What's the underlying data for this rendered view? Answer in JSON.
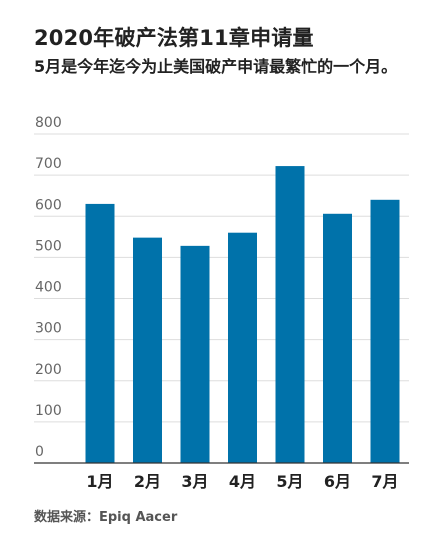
{
  "title": "2020年破产法第11章申请量",
  "subtitle": "5月是今年迄今为止美国破产申请最繁忙的一个月。",
  "source": "数据来源：Epiq Aacer",
  "colors": {
    "bar": "#0072aa",
    "grid": "#dddddd",
    "axis": "#333333",
    "tick_text": "#666666",
    "label_text": "#222222"
  },
  "chart_data": {
    "type": "bar",
    "categories": [
      "1月",
      "2月",
      "3月",
      "4月",
      "5月",
      "6月",
      "7月"
    ],
    "values": [
      630,
      548,
      528,
      560,
      722,
      606,
      640
    ],
    "ylim": [
      0,
      800
    ],
    "yticks": [
      0,
      100,
      200,
      300,
      400,
      500,
      600,
      700,
      800
    ],
    "grid": true,
    "xlabel": "",
    "ylabel": ""
  }
}
